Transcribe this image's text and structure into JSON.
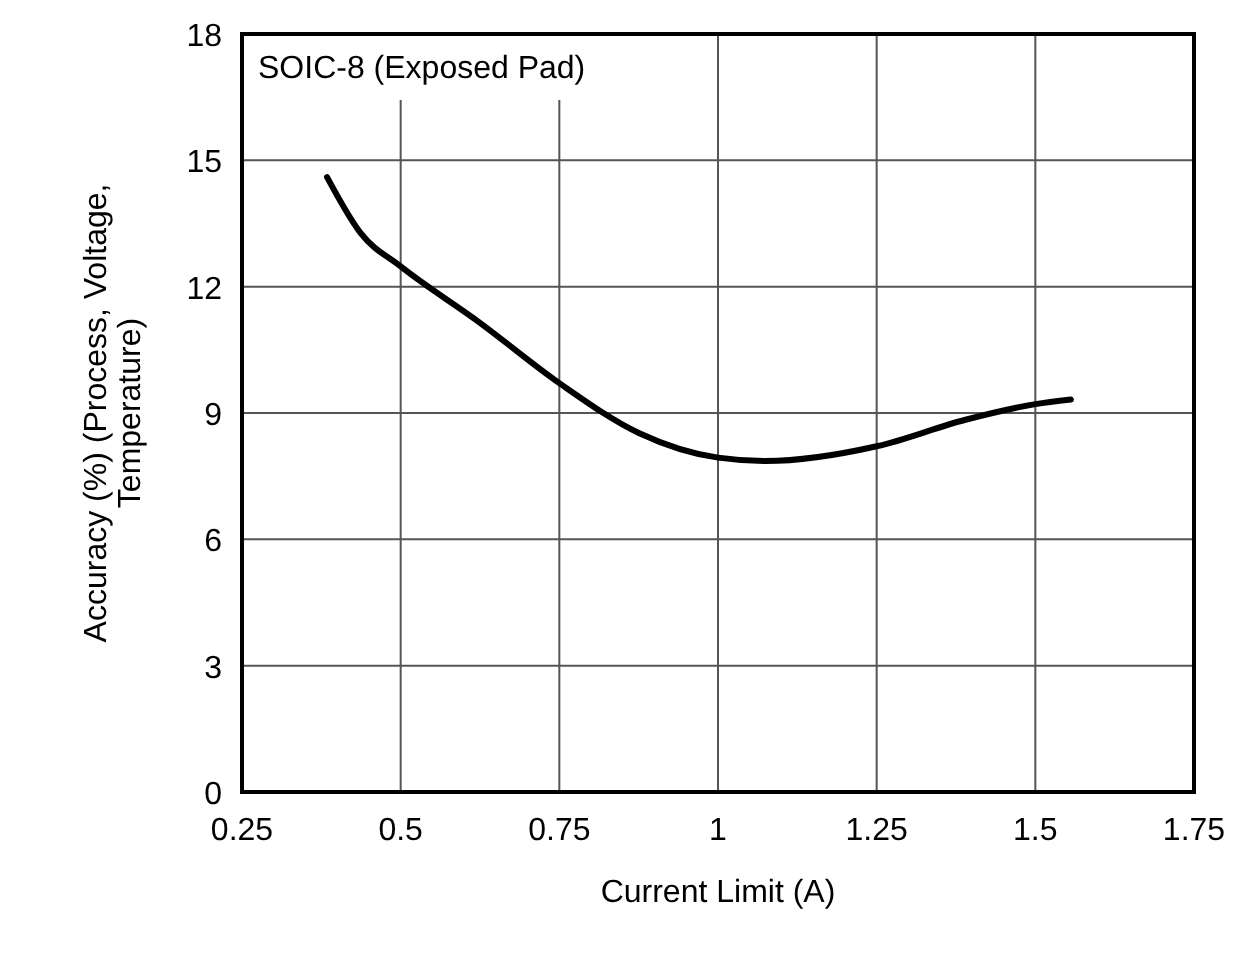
{
  "chart_data": {
    "type": "line",
    "title": "SOIC-8 (Exposed Pad)",
    "xlabel": "Current Limit (A)",
    "ylabel": "Accuracy (%)  (Process, Voltage,\nTemperature)",
    "x": [
      0.384,
      0.437,
      0.5,
      0.626,
      0.75,
      0.876,
      1.0,
      1.075,
      1.25,
      1.39,
      1.5,
      1.556
    ],
    "series": [
      {
        "color": "#000000",
        "values": [
          14.6,
          13.27,
          12.48,
          11.13,
          9.71,
          8.52,
          7.94,
          7.86,
          8.21,
          8.84,
          9.21,
          9.32
        ]
      }
    ],
    "xlim": [
      0.25,
      1.75
    ],
    "xticks": [
      0.25,
      0.5,
      0.75,
      1,
      1.25,
      1.5,
      1.75
    ],
    "ylim": [
      0,
      18
    ],
    "yticks": [
      0,
      3,
      6,
      9,
      12,
      15,
      18
    ],
    "grid": true,
    "marker": "none",
    "line_style": "solid"
  }
}
